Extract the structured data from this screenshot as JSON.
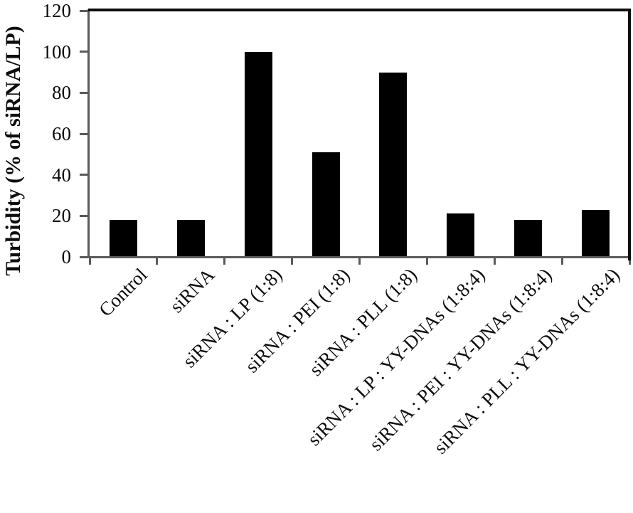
{
  "chart_data": {
    "type": "bar",
    "title": "",
    "xlabel": "",
    "ylabel": "Turbidity (% of siRNA/LP)",
    "categories": [
      "Control",
      "siRNA",
      "siRNA : LP (1:8)",
      "siRNA : PEI (1:8)",
      "siRNA : PLL (1:8)",
      "siRNA : LP : YY-DNAs (1:8:4)",
      "siRNA : PEI : YY-DNAs (1:8:4)",
      "siRNA : PLL : YY-DNAs (1:8:4)"
    ],
    "values": [
      18,
      18,
      100,
      51,
      90,
      21,
      18,
      23
    ],
    "ylim": [
      0,
      120
    ],
    "yticks": [
      0,
      20,
      40,
      60,
      80,
      100,
      120
    ],
    "x_tick_label_rotation_deg": 45,
    "grid": false,
    "legend": null,
    "colors": {
      "bar": "#000000",
      "axis": "#5a5a5a",
      "plot_border": "#0d0d0d",
      "text": "#0d0d0d",
      "background": "#ffffff"
    }
  }
}
